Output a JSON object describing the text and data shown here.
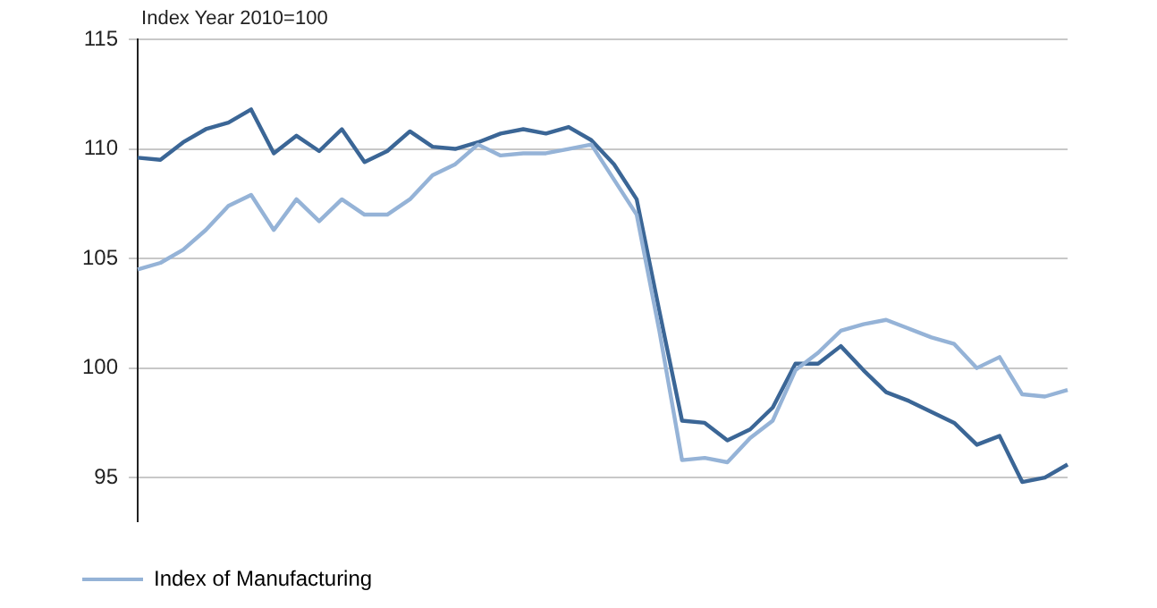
{
  "chart_data": {
    "type": "line",
    "ylabel": "Index Year 2010=100",
    "categories": [
      null,
      null,
      null,
      null,
      null,
      null,
      null,
      null,
      null,
      null,
      null,
      null,
      null,
      null,
      null,
      null,
      null,
      null,
      null,
      null,
      null,
      null,
      null,
      null,
      null,
      null,
      null,
      null,
      null,
      null,
      null,
      null,
      null,
      null,
      null,
      null,
      null,
      null,
      null,
      null,
      null,
      null
    ],
    "series": [
      {
        "name": "Index of Manufacturing",
        "color": "#95b3d7",
        "values": [
          104.5,
          104.8,
          105.4,
          106.3,
          107.4,
          107.9,
          106.3,
          107.7,
          106.7,
          107.7,
          107.0,
          107.0,
          107.7,
          108.8,
          109.3,
          110.2,
          109.7,
          109.8,
          109.8,
          110.0,
          110.2,
          108.6,
          107.0,
          101.7,
          95.8,
          95.9,
          95.7,
          96.8,
          97.6,
          99.9,
          100.7,
          101.7,
          102.0,
          102.2,
          101.8,
          101.4,
          101.1,
          100.0,
          100.5,
          98.8,
          98.7,
          99.0
        ]
      },
      {
        "color": "#3b6696",
        "values": [
          109.6,
          109.5,
          110.3,
          110.9,
          111.2,
          111.8,
          109.8,
          110.6,
          109.9,
          110.9,
          109.4,
          109.9,
          110.8,
          110.1,
          110.0,
          110.3,
          110.7,
          110.9,
          110.7,
          111.0,
          110.4,
          109.3,
          107.7,
          102.6,
          97.6,
          97.5,
          96.7,
          97.2,
          98.2,
          100.2,
          100.2,
          101.0,
          99.9,
          98.9,
          98.5,
          98.0,
          97.5,
          96.5,
          96.9,
          94.8,
          95.0,
          95.6
        ]
      }
    ],
    "ylim": [
      93,
      115
    ],
    "yticks": [
      95,
      100,
      105,
      110,
      115
    ],
    "grid": "y",
    "legend": "bottom",
    "marker": "none",
    "line_style": "solid"
  }
}
